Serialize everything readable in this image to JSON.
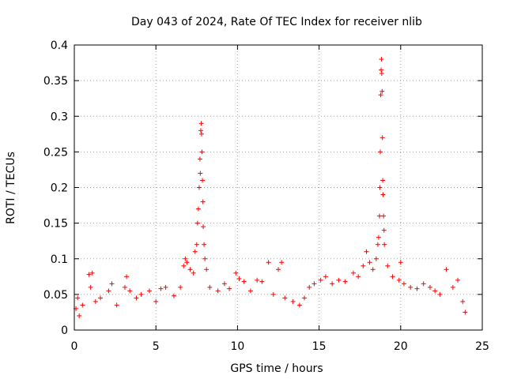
{
  "chart_data": {
    "type": "scatter",
    "title": "Day 043 of 2024, Rate Of TEC Index for receiver nlib",
    "xlabel": "GPS time / hours",
    "ylabel": "ROTI / TECUs",
    "xlim": [
      0,
      25
    ],
    "ylim": [
      0,
      0.4
    ],
    "x_ticks": [
      "0",
      "5",
      "10",
      "15",
      "20",
      "25"
    ],
    "y_ticks": [
      "0",
      "0.05",
      "0.1",
      "0.15",
      "0.2",
      "0.25",
      "0.3",
      "0.35",
      "0.4"
    ],
    "grid": true,
    "marker": "+",
    "marker_color": "#ff0000",
    "series": [
      {
        "name": "ROTI",
        "points": [
          [
            0.1,
            0.03
          ],
          [
            0.2,
            0.045
          ],
          [
            0.3,
            0.02
          ],
          [
            0.5,
            0.035
          ],
          [
            0.9,
            0.078
          ],
          [
            1.0,
            0.06
          ],
          [
            1.1,
            0.08
          ],
          [
            1.3,
            0.04
          ],
          [
            1.6,
            0.045
          ],
          [
            2.1,
            0.055
          ],
          [
            2.3,
            0.065
          ],
          [
            2.6,
            0.035
          ],
          [
            3.1,
            0.06
          ],
          [
            3.2,
            0.075
          ],
          [
            3.4,
            0.055
          ],
          [
            3.8,
            0.045
          ],
          [
            4.1,
            0.05
          ],
          [
            4.6,
            0.055
          ],
          [
            5.0,
            0.04
          ],
          [
            5.3,
            0.058
          ],
          [
            5.6,
            0.06
          ],
          [
            6.1,
            0.048
          ],
          [
            6.5,
            0.06
          ],
          [
            6.7,
            0.09
          ],
          [
            6.8,
            0.1
          ],
          [
            6.9,
            0.095
          ],
          [
            7.1,
            0.085
          ],
          [
            7.3,
            0.08
          ],
          [
            7.4,
            0.11
          ],
          [
            7.5,
            0.12
          ],
          [
            7.55,
            0.15
          ],
          [
            7.6,
            0.17
          ],
          [
            7.65,
            0.2
          ],
          [
            7.7,
            0.24
          ],
          [
            7.72,
            0.22
          ],
          [
            7.75,
            0.28
          ],
          [
            7.78,
            0.29
          ],
          [
            7.8,
            0.275
          ],
          [
            7.82,
            0.25
          ],
          [
            7.85,
            0.21
          ],
          [
            7.88,
            0.18
          ],
          [
            7.9,
            0.145
          ],
          [
            7.95,
            0.12
          ],
          [
            8.0,
            0.1
          ],
          [
            8.1,
            0.085
          ],
          [
            8.3,
            0.06
          ],
          [
            8.8,
            0.055
          ],
          [
            9.2,
            0.065
          ],
          [
            9.5,
            0.058
          ],
          [
            9.9,
            0.08
          ],
          [
            10.1,
            0.072
          ],
          [
            10.4,
            0.068
          ],
          [
            10.8,
            0.055
          ],
          [
            11.2,
            0.07
          ],
          [
            11.5,
            0.068
          ],
          [
            11.9,
            0.095
          ],
          [
            12.2,
            0.05
          ],
          [
            12.5,
            0.085
          ],
          [
            12.7,
            0.095
          ],
          [
            12.9,
            0.045
          ],
          [
            13.4,
            0.04
          ],
          [
            13.8,
            0.035
          ],
          [
            14.1,
            0.045
          ],
          [
            14.4,
            0.06
          ],
          [
            14.7,
            0.065
          ],
          [
            15.1,
            0.07
          ],
          [
            15.4,
            0.075
          ],
          [
            15.8,
            0.065
          ],
          [
            16.2,
            0.07
          ],
          [
            16.6,
            0.068
          ],
          [
            17.1,
            0.08
          ],
          [
            17.4,
            0.075
          ],
          [
            17.7,
            0.09
          ],
          [
            17.9,
            0.11
          ],
          [
            18.1,
            0.095
          ],
          [
            18.3,
            0.085
          ],
          [
            18.5,
            0.1
          ],
          [
            18.6,
            0.12
          ],
          [
            18.65,
            0.13
          ],
          [
            18.7,
            0.16
          ],
          [
            18.72,
            0.2
          ],
          [
            18.75,
            0.25
          ],
          [
            18.78,
            0.33
          ],
          [
            18.8,
            0.365
          ],
          [
            18.82,
            0.38
          ],
          [
            18.84,
            0.36
          ],
          [
            18.86,
            0.335
          ],
          [
            18.88,
            0.27
          ],
          [
            18.9,
            0.21
          ],
          [
            18.92,
            0.19
          ],
          [
            18.95,
            0.16
          ],
          [
            18.98,
            0.14
          ],
          [
            19.0,
            0.12
          ],
          [
            19.2,
            0.09
          ],
          [
            19.5,
            0.075
          ],
          [
            19.9,
            0.07
          ],
          [
            20.0,
            0.095
          ],
          [
            20.2,
            0.065
          ],
          [
            20.6,
            0.06
          ],
          [
            21.0,
            0.058
          ],
          [
            21.4,
            0.065
          ],
          [
            21.8,
            0.06
          ],
          [
            22.1,
            0.055
          ],
          [
            22.4,
            0.05
          ],
          [
            22.8,
            0.085
          ],
          [
            23.2,
            0.06
          ],
          [
            23.5,
            0.07
          ],
          [
            23.8,
            0.04
          ],
          [
            23.95,
            0.025
          ]
        ]
      }
    ]
  }
}
